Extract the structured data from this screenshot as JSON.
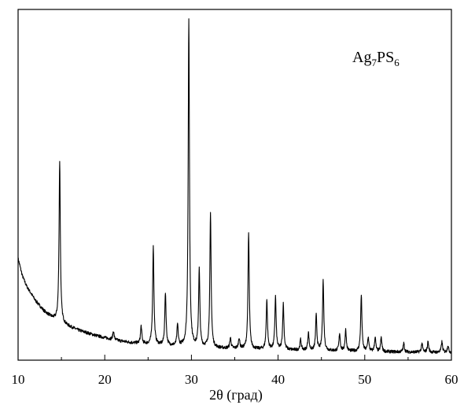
{
  "chart_data": {
    "type": "line",
    "title": "",
    "xlabel": "2θ (град)",
    "ylabel": "",
    "xlim": [
      10,
      60
    ],
    "ylim": [
      0,
      100
    ],
    "x_ticks": [
      10,
      20,
      30,
      40,
      50,
      60
    ],
    "x_tick_labels": [
      "10",
      "20",
      "30",
      "40",
      "50",
      "60"
    ],
    "y_ticks_labeled": false,
    "grid": false,
    "legend": "none",
    "annotation": {
      "base": "Ag",
      "sub1": "7",
      "mid": "PS",
      "sub2": "6",
      "position": "top-right"
    },
    "line_color": "#000000",
    "background_curve": [
      [
        10.0,
        29
      ],
      [
        10.5,
        24
      ],
      [
        11.0,
        21
      ],
      [
        12.0,
        17
      ],
      [
        13.0,
        14
      ],
      [
        14.0,
        12
      ],
      [
        15.5,
        10
      ],
      [
        17.0,
        8.5
      ],
      [
        19.0,
        7
      ],
      [
        21.0,
        5.8
      ],
      [
        23.0,
        5
      ],
      [
        25.0,
        4.5
      ],
      [
        28.0,
        4
      ],
      [
        32.0,
        3.5
      ],
      [
        36.0,
        3.2
      ],
      [
        40.0,
        3
      ],
      [
        45.0,
        2.7
      ],
      [
        50.0,
        2.5
      ],
      [
        55.0,
        2.3
      ],
      [
        60.0,
        2.2
      ]
    ],
    "series": [
      {
        "peaks": [
          [
            14.8,
            46
          ],
          [
            21.0,
            2.5
          ],
          [
            24.2,
            5
          ],
          [
            25.6,
            28
          ],
          [
            27.0,
            15
          ],
          [
            28.4,
            6
          ],
          [
            29.7,
            93
          ],
          [
            30.9,
            22
          ],
          [
            32.2,
            38
          ],
          [
            34.5,
            3
          ],
          [
            35.5,
            3
          ],
          [
            36.6,
            33
          ],
          [
            38.7,
            14
          ],
          [
            39.7,
            15
          ],
          [
            40.6,
            13
          ],
          [
            42.6,
            3
          ],
          [
            43.5,
            5
          ],
          [
            44.4,
            10
          ],
          [
            45.2,
            20
          ],
          [
            47.1,
            5
          ],
          [
            47.8,
            6
          ],
          [
            49.6,
            16
          ],
          [
            50.4,
            4
          ],
          [
            51.2,
            4
          ],
          [
            51.9,
            4
          ],
          [
            54.5,
            2.5
          ],
          [
            56.6,
            2.5
          ],
          [
            57.3,
            3
          ],
          [
            58.9,
            3
          ],
          [
            59.6,
            2
          ]
        ]
      }
    ]
  }
}
